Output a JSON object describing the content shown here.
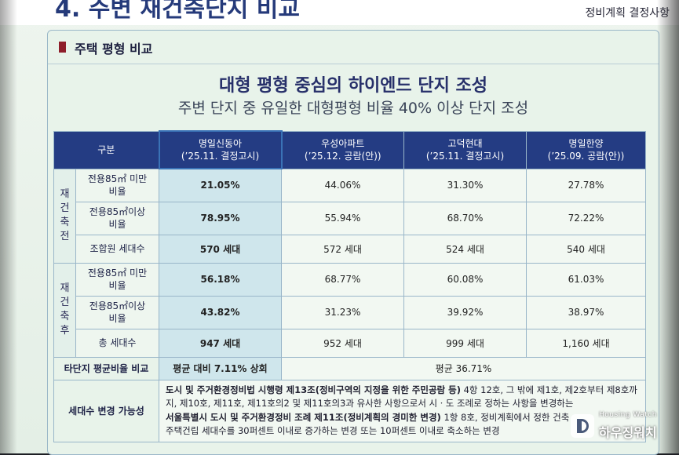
{
  "slide": {
    "section_title": "4. 주변 재건축단지 비교",
    "section_sub": "정비계획 결정사항",
    "card_title": "주택 평형 비교",
    "headline1": "대형 평형 중심의 하이엔드 단지 조성",
    "headline2": "주변 단지 중 유일한 대형평형 비율 40% 이상 단지 조성"
  },
  "table": {
    "header": {
      "corner": "구분",
      "columns": [
        {
          "name": "명일신동아",
          "date": "(’25.11. 결정고시)"
        },
        {
          "name": "우성아파트",
          "date": "(’25.12. 공람(안))"
        },
        {
          "name": "고덕현대",
          "date": "(’25.11. 결정고시)"
        },
        {
          "name": "명일한양",
          "date": "(’25.09. 공람(안))"
        }
      ]
    },
    "before": {
      "group": [
        "재",
        "건",
        "축",
        "전"
      ],
      "rows": [
        {
          "label1": "전용85㎡ 미만",
          "label2": "비율",
          "values": [
            "21.05%",
            "44.06%",
            "31.30%",
            "27.78%"
          ]
        },
        {
          "label1": "전용85㎡이상",
          "label2": "비율",
          "values": [
            "78.95%",
            "55.94%",
            "68.70%",
            "72.22%"
          ]
        },
        {
          "label1": "조합원 세대수",
          "values": [
            "570 세대",
            "572 세대",
            "524 세대",
            "540 세대"
          ]
        }
      ]
    },
    "after": {
      "group": [
        "재",
        "건",
        "축",
        "후"
      ],
      "rows": [
        {
          "label1": "전용85㎡ 미만",
          "label2": "비율",
          "values": [
            "56.18%",
            "68.77%",
            "60.08%",
            "61.03%"
          ]
        },
        {
          "label1": "전용85㎡이상",
          "label2": "비율",
          "values": [
            "43.82%",
            "31.23%",
            "39.92%",
            "38.97%"
          ]
        },
        {
          "label1": "총 세대수",
          "values": [
            "947 세대",
            "952 세대",
            "999 세대",
            "1,160 세대"
          ]
        }
      ]
    },
    "avg_row": {
      "label": "타단지 평균비율 비교",
      "highlight": "평균 대비 7.11% 상회",
      "rest": "평균 36.71%"
    },
    "change_row": {
      "label": "세대수 변경 가능성",
      "p1a": "도시 및 주거환경정비법 시행령 제13조",
      "p1b": "(정비구역의 지정을 위한 주민공람 등)",
      "p1c": " 4항 12호, 그 밖에 제1호, 제2호부터 제8호까지, 제10호, 제11호, 제11호의2 및 제11호의3과 유사한 사항으로서 시ㆍ도 조례로 정하는 사항을 변경하는",
      "p2a": "서울특별시 도시 및 주거환경정비 조례 제11조",
      "p2b": "(정비계획의 경미한 변경)",
      "p2c": " 1항 8호, 정비계획에서 정한 건축",
      "p2d": "주택건립 세대수를 30퍼센트 이내로 증가하는 변경 또는 10퍼센트 이내로 축소하는 변경"
    }
  },
  "watermark": {
    "en": "Housing Watch",
    "ko": "하우징워치"
  }
}
